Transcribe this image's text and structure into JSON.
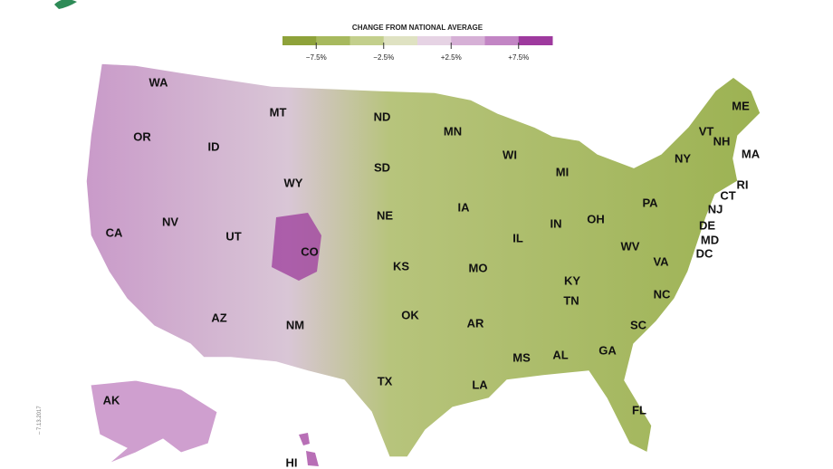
{
  "legend": {
    "title": "CHANGE FROM NATIONAL AVERAGE",
    "range": [
      -10,
      10
    ],
    "ticks": [
      {
        "value": -7.5,
        "label": "−7.5%"
      },
      {
        "value": -2.5,
        "label": "−2.5%"
      },
      {
        "value": 2.5,
        "label": "+2.5%"
      },
      {
        "value": 7.5,
        "label": "+7.5%"
      }
    ],
    "colors": [
      "#8ea23a",
      "#a7b95e",
      "#c3cf8c",
      "#dfe2c2",
      "#e6d3e4",
      "#d6b0d6",
      "#c285c4",
      "#9e3a9e"
    ]
  },
  "states": [
    "WA",
    "MT",
    "ND",
    "MN",
    "OR",
    "ID",
    "SD",
    "WI",
    "ME",
    "VT",
    "NH",
    "MA",
    "NY",
    "MI",
    "WY",
    "RI",
    "CT",
    "NJ",
    "PA",
    "IA",
    "NE",
    "NV",
    "IN",
    "OH",
    "DE",
    "MD",
    "DC",
    "CA",
    "UT",
    "IL",
    "CO",
    "WV",
    "KS",
    "MO",
    "VA",
    "KY",
    "TN",
    "NC",
    "AZ",
    "OK",
    "NM",
    "AR",
    "SC",
    "AL",
    "GA",
    "MS",
    "TX",
    "LA",
    "FL",
    "AK",
    "HI"
  ],
  "datestamp": "– 7.13.2017"
}
